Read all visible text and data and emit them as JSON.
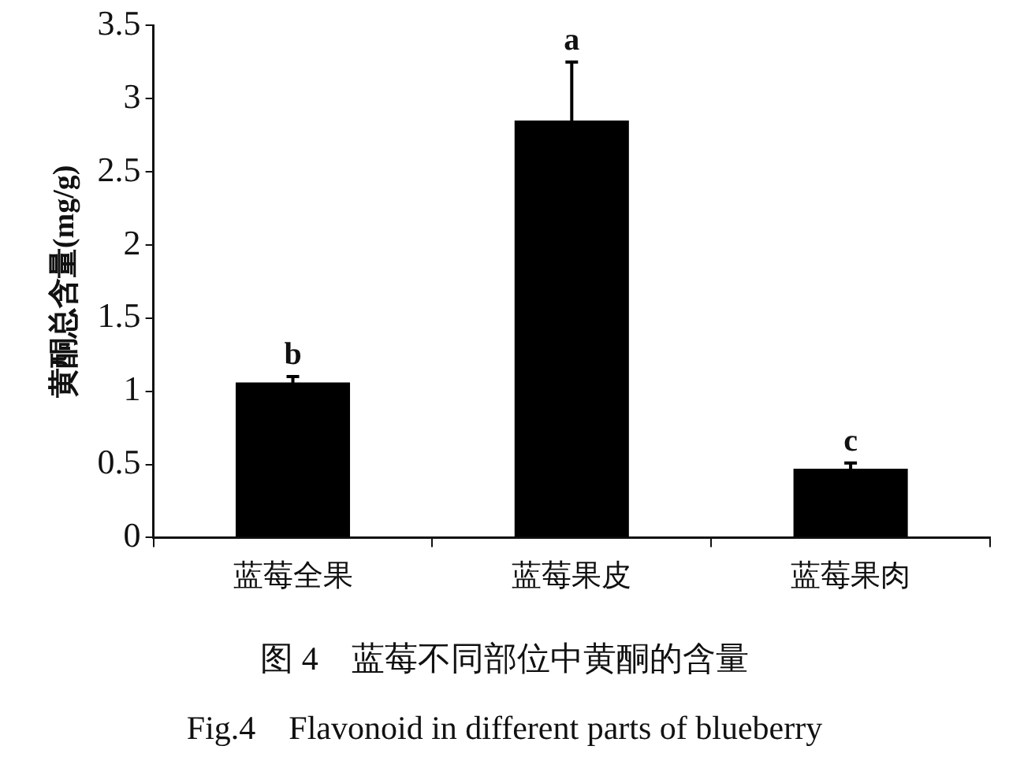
{
  "chart_data": {
    "type": "bar",
    "title": "图 4　蓝莓不同部位中黄酮的含量",
    "subtitle": "Fig.4　Flavonoid in different parts of blueberry",
    "ylabel": "黄酮总含量(mg/g)",
    "categories": [
      "蓝莓全果",
      "蓝莓果皮",
      "蓝莓果肉"
    ],
    "values": [
      1.06,
      2.85,
      0.47
    ],
    "errors": [
      0.04,
      0.4,
      0.04
    ],
    "color": "#000000",
    "ylim": [
      0,
      3.5
    ],
    "yticks": [
      0,
      0.5,
      1,
      1.5,
      2,
      2.5,
      3,
      3.5
    ],
    "grid": false,
    "legend": false,
    "annotations": [
      {
        "text": "b",
        "x": "蓝莓全果",
        "y": 1.1
      },
      {
        "text": "a",
        "x": "蓝莓果皮",
        "y": 3.25
      },
      {
        "text": "c",
        "x": "蓝莓果肉",
        "y": 0.51
      }
    ]
  }
}
